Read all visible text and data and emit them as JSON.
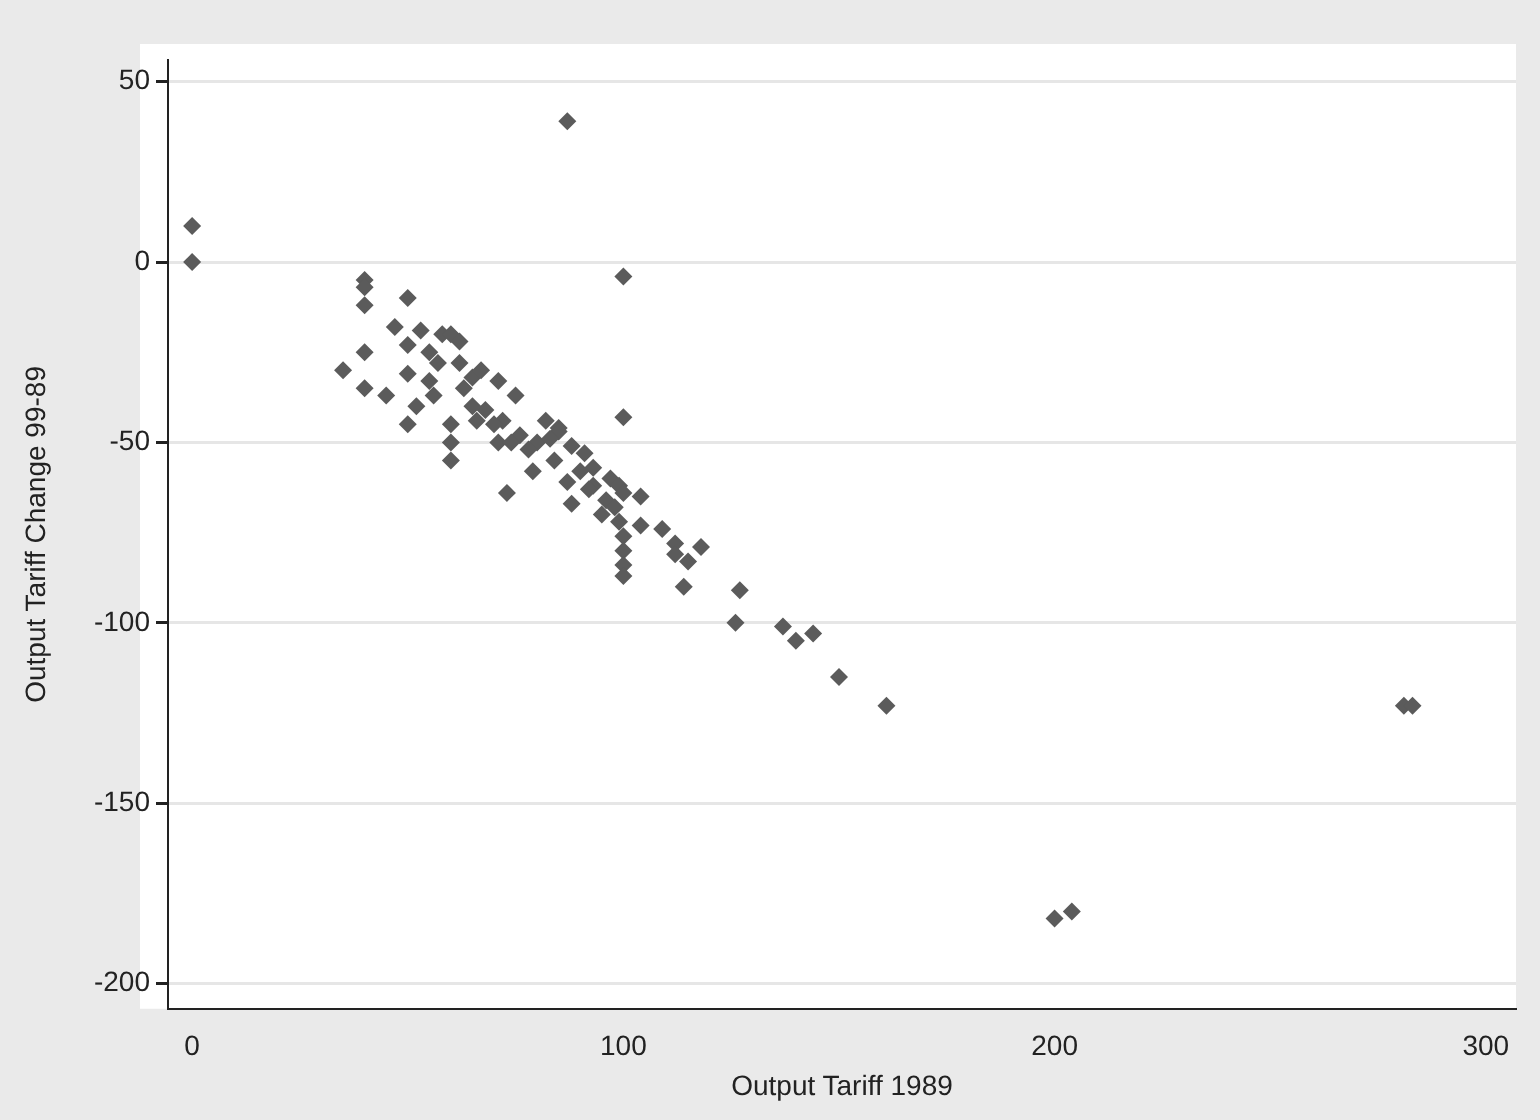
{
  "chart_data": {
    "type": "scatter",
    "xlabel": "Output Tariff 1989",
    "ylabel": "Output Tariff Change 99-89",
    "x": [
      0,
      0,
      87,
      100,
      40,
      40,
      40,
      50,
      35,
      40,
      40,
      45,
      47,
      53,
      50,
      55,
      58,
      60,
      62,
      57,
      50,
      52,
      50,
      60,
      60,
      60,
      65,
      62,
      63,
      67,
      71,
      75,
      68,
      72,
      71,
      73,
      79,
      76,
      80,
      82,
      85,
      88,
      91,
      87,
      88,
      93,
      96,
      93,
      97,
      99,
      100,
      99,
      100,
      100,
      100,
      100,
      100,
      104,
      104,
      109,
      112,
      112,
      115,
      118,
      114,
      127,
      126,
      137,
      140,
      144,
      150,
      161,
      200,
      204,
      281,
      283,
      65,
      55,
      84,
      90,
      95,
      98,
      85,
      78,
      66,
      56,
      70,
      74,
      83,
      92
    ],
    "values": [
      10,
      0,
      39,
      -4,
      -5,
      -7,
      -12,
      -10,
      -30,
      -25,
      -35,
      -37,
      -18,
      -19,
      -23,
      -25,
      -20,
      -20,
      -22,
      -28,
      -31,
      -40,
      -45,
      -45,
      -50,
      -55,
      -32,
      -28,
      -35,
      -30,
      -33,
      -37,
      -41,
      -44,
      -50,
      -64,
      -58,
      -48,
      -50,
      -44,
      -46,
      -51,
      -53,
      -61,
      -67,
      -62,
      -66,
      -57,
      -60,
      -62,
      -64,
      -72,
      -76,
      -80,
      -84,
      -87,
      -43,
      -65,
      -73,
      -74,
      -78,
      -81,
      -83,
      -79,
      -90,
      -91,
      -100,
      -101,
      -105,
      -103,
      -115,
      -123,
      -182,
      -180,
      -123,
      -123,
      -40,
      -33,
      -55,
      -58,
      -70,
      -68,
      -47,
      -52,
      -44,
      -37,
      -45,
      -50,
      -49,
      -63
    ],
    "color": "#5b5b5b",
    "marker": "diamond",
    "xlim": [
      -5.6,
      307
    ],
    "ylim": [
      -207,
      56
    ],
    "xticks": [
      0,
      100,
      200,
      300
    ],
    "yticks": [
      -200,
      -150,
      -100,
      -50,
      0,
      50
    ],
    "grid": "y",
    "legend": false
  }
}
